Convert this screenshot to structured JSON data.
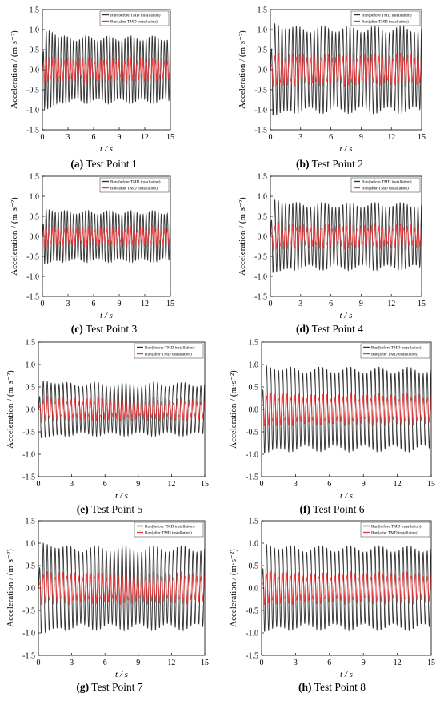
{
  "figure": {
    "panels": [
      {
        "caption_letter": "(a)",
        "caption_text": "Test Point 1"
      },
      {
        "caption_letter": "(b)",
        "caption_text": "Test Point 2"
      },
      {
        "caption_letter": "(c)",
        "caption_text": "Test Point 3"
      },
      {
        "caption_letter": "(d)",
        "caption_text": "Test Point 4"
      },
      {
        "caption_letter": "(e)",
        "caption_text": "Test Point 5"
      },
      {
        "caption_letter": "(f)",
        "caption_text": "Test Point 6"
      },
      {
        "caption_letter": "(g)",
        "caption_text": "Test Point 7"
      },
      {
        "caption_letter": "(h)",
        "caption_text": "Test Point 8"
      }
    ]
  },
  "chart_data": [
    {
      "type": "line",
      "panel": "(a)",
      "ylabel": "Acceleration / (m·s⁻²)",
      "xlabel": "t / s",
      "xlim": [
        0,
        15
      ],
      "ylim": [
        -1.5,
        1.5
      ],
      "xticks": [
        0,
        3,
        6,
        9,
        12,
        15
      ],
      "yticks": [
        -1.5,
        -1.0,
        -0.5,
        0.0,
        0.5,
        1.0,
        1.5
      ],
      "legend_position": "top-right",
      "grid": false,
      "series": [
        {
          "name": "Run(before TMD installation)",
          "color": "#333333",
          "amplitude_peak": 1.1,
          "amplitude_steady": 0.85
        },
        {
          "name": "Run(after TMD installation)",
          "color": "#e8383a",
          "amplitude_peak": 0.3,
          "amplitude_steady": 0.25
        }
      ]
    },
    {
      "type": "line",
      "panel": "(b)",
      "ylabel": "Acceleration / (m·s⁻²)",
      "xlabel": "t / s",
      "xlim": [
        0,
        15
      ],
      "ylim": [
        -1.5,
        1.5
      ],
      "xticks": [
        0,
        3,
        6,
        9,
        12,
        15
      ],
      "yticks": [
        -1.5,
        -1.0,
        -0.5,
        0.0,
        0.5,
        1.0,
        1.5
      ],
      "legend_position": "top-right",
      "grid": false,
      "series": [
        {
          "name": "Run(before TMD installation)",
          "color": "#333333",
          "amplitude_peak": 1.25,
          "amplitude_steady": 1.1
        },
        {
          "name": "Run(after TMD installation)",
          "color": "#e8383a",
          "amplitude_peak": 0.4,
          "amplitude_steady": 0.35
        }
      ]
    },
    {
      "type": "line",
      "panel": "(c)",
      "ylabel": "Acceleration / (m·s⁻²)",
      "xlabel": "t / s",
      "xlim": [
        0,
        15
      ],
      "ylim": [
        -1.5,
        1.5
      ],
      "xticks": [
        0,
        3,
        6,
        9,
        12,
        15
      ],
      "yticks": [
        -1.5,
        -1.0,
        -0.5,
        0.0,
        0.5,
        1.0,
        1.5
      ],
      "legend_position": "top-right",
      "grid": false,
      "series": [
        {
          "name": "Run(before TMD installation)",
          "color": "#333333",
          "amplitude_peak": 0.75,
          "amplitude_steady": 0.65
        },
        {
          "name": "Run(after TMD installation)",
          "color": "#e8383a",
          "amplitude_peak": 0.25,
          "amplitude_steady": 0.2
        }
      ]
    },
    {
      "type": "line",
      "panel": "(d)",
      "ylabel": "Acceleration / (m·s⁻²)",
      "xlabel": "t / s",
      "xlim": [
        0,
        15
      ],
      "ylim": [
        -1.5,
        1.5
      ],
      "xticks": [
        0,
        3,
        6,
        9,
        12,
        15
      ],
      "yticks": [
        -1.5,
        -1.0,
        -0.5,
        0.0,
        0.5,
        1.0,
        1.5
      ],
      "legend_position": "top-right",
      "grid": false,
      "series": [
        {
          "name": "Run(before TMD installation)",
          "color": "#333333",
          "amplitude_peak": 1.0,
          "amplitude_steady": 0.85
        },
        {
          "name": "Run(after TMD installation)",
          "color": "#e8383a",
          "amplitude_peak": 0.3,
          "amplitude_steady": 0.25
        }
      ]
    },
    {
      "type": "line",
      "panel": "(e)",
      "ylabel": "Acceleration / (m·s⁻²)",
      "xlabel": "t / s",
      "xlim": [
        0,
        15
      ],
      "ylim": [
        -1.5,
        1.5
      ],
      "xticks": [
        0,
        3,
        6,
        9,
        12,
        15
      ],
      "yticks": [
        -1.5,
        -1.0,
        -0.5,
        0.0,
        0.5,
        1.0,
        1.5
      ],
      "legend_position": "top-right",
      "grid": false,
      "series": [
        {
          "name": "Run(before TMD installation)",
          "color": "#333333",
          "amplitude_peak": 0.7,
          "amplitude_steady": 0.6
        },
        {
          "name": "Run(after TMD installation)",
          "color": "#e8383a",
          "amplitude_peak": 0.25,
          "amplitude_steady": 0.2
        }
      ]
    },
    {
      "type": "line",
      "panel": "(f)",
      "ylabel": "Acceleration / (m·s⁻²)",
      "xlabel": "t / s",
      "xlim": [
        0,
        15
      ],
      "ylim": [
        -1.5,
        1.5
      ],
      "xticks": [
        0,
        3,
        6,
        9,
        12,
        15
      ],
      "yticks": [
        -1.5,
        -1.0,
        -0.5,
        0.0,
        0.5,
        1.0,
        1.5
      ],
      "legend_position": "top-right",
      "grid": false,
      "series": [
        {
          "name": "Run(before TMD installation)",
          "color": "#333333",
          "amplitude_peak": 1.05,
          "amplitude_steady": 0.95
        },
        {
          "name": "Run(after TMD installation)",
          "color": "#e8383a",
          "amplitude_peak": 0.35,
          "amplitude_steady": 0.3
        }
      ]
    },
    {
      "type": "line",
      "panel": "(g)",
      "ylabel": "Acceleration / (m·s⁻²)",
      "xlabel": "t / s",
      "xlim": [
        0,
        15
      ],
      "ylim": [
        -1.5,
        1.5
      ],
      "xticks": [
        0,
        3,
        6,
        9,
        12,
        15
      ],
      "yticks": [
        -1.5,
        -1.0,
        -0.5,
        0.0,
        0.5,
        1.0,
        1.5
      ],
      "legend_position": "top-right",
      "grid": false,
      "series": [
        {
          "name": "Run(before TMD installation)",
          "color": "#333333",
          "amplitude_peak": 1.1,
          "amplitude_steady": 0.95
        },
        {
          "name": "Run(after TMD installation)",
          "color": "#e8383a",
          "amplitude_peak": 0.35,
          "amplitude_steady": 0.3
        }
      ]
    },
    {
      "type": "line",
      "panel": "(h)",
      "ylabel": "Acceleration / (m·s⁻²)",
      "xlabel": "t / s",
      "xlim": [
        0,
        15
      ],
      "ylim": [
        -1.5,
        1.5
      ],
      "xticks": [
        0,
        3,
        6,
        9,
        12,
        15
      ],
      "yticks": [
        -1.5,
        -1.0,
        -0.5,
        0.0,
        0.5,
        1.0,
        1.5
      ],
      "legend_position": "top-right",
      "grid": false,
      "series": [
        {
          "name": "Run(before TMD installation)",
          "color": "#333333",
          "amplitude_peak": 1.05,
          "amplitude_steady": 0.95
        },
        {
          "name": "Run(after TMD installation)",
          "color": "#e8383a",
          "amplitude_peak": 0.35,
          "amplitude_steady": 0.3
        }
      ]
    }
  ]
}
